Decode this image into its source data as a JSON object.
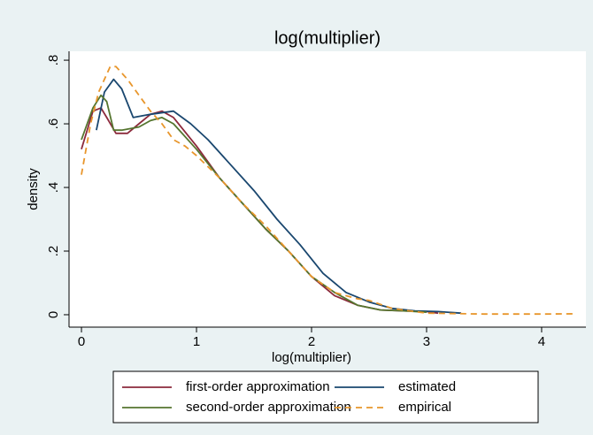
{
  "chart_data": {
    "type": "line",
    "title": "log(multiplier)",
    "x_label": "log(multiplier)",
    "y_label": "density",
    "xlim": [
      -0.108,
      4.385
    ],
    "ylim": [
      -0.039,
      0.828
    ],
    "xticks": [
      0,
      1,
      2,
      3,
      4
    ],
    "yticks": [
      0,
      {
        "value": 0.2,
        "label": ".2"
      },
      {
        "value": 0.4,
        "label": ".4"
      },
      {
        "value": 0.6,
        "label": ".6"
      },
      {
        "value": 0.8,
        "label": ".8"
      }
    ],
    "series": [
      {
        "name": "first-order approximation",
        "color": "#8c2a3c",
        "dashed": false,
        "x": [
          0,
          0.1,
          0.17,
          0.22,
          0.3,
          0.4,
          0.5,
          0.6,
          0.7,
          0.8,
          1.0,
          1.2,
          1.4,
          1.6,
          1.8,
          2.0,
          2.2,
          2.4,
          2.6,
          2.8,
          3.0,
          3.1
        ],
        "values": [
          0.52,
          0.64,
          0.65,
          0.62,
          0.57,
          0.57,
          0.6,
          0.63,
          0.64,
          0.62,
          0.53,
          0.43,
          0.35,
          0.27,
          0.2,
          0.12,
          0.06,
          0.03,
          0.015,
          0.012,
          0.01,
          0.005
        ]
      },
      {
        "name": "estimated",
        "color": "#1a476f",
        "dashed": false,
        "x": [
          0.13,
          0.2,
          0.28,
          0.35,
          0.45,
          0.6,
          0.8,
          0.95,
          1.1,
          1.3,
          1.5,
          1.7,
          1.9,
          2.1,
          2.3,
          2.5,
          2.7,
          2.9,
          3.1,
          3.3
        ],
        "values": [
          0.58,
          0.7,
          0.74,
          0.71,
          0.62,
          0.63,
          0.64,
          0.6,
          0.55,
          0.47,
          0.39,
          0.3,
          0.22,
          0.13,
          0.07,
          0.04,
          0.02,
          0.012,
          0.01,
          0.005
        ]
      },
      {
        "name": "second-order approximation",
        "color": "#55752f",
        "dashed": false,
        "x": [
          0,
          0.1,
          0.17,
          0.22,
          0.28,
          0.35,
          0.5,
          0.6,
          0.7,
          0.8,
          1.0,
          1.2,
          1.4,
          1.6,
          1.8,
          2.0,
          2.2,
          2.4,
          2.6,
          2.8,
          3.0
        ],
        "values": [
          0.55,
          0.65,
          0.69,
          0.67,
          0.58,
          0.58,
          0.59,
          0.61,
          0.62,
          0.6,
          0.52,
          0.43,
          0.35,
          0.27,
          0.2,
          0.12,
          0.07,
          0.03,
          0.015,
          0.012,
          0.008
        ]
      },
      {
        "name": "empirical",
        "color": "#e8962c",
        "dashed": true,
        "x": [
          0,
          0.08,
          0.15,
          0.25,
          0.3,
          0.4,
          0.5,
          0.6,
          0.7,
          0.8,
          0.9,
          1.0,
          1.2,
          1.4,
          1.6,
          1.8,
          2.0,
          2.2,
          2.4,
          2.5,
          2.7,
          3.0,
          3.5,
          4.0,
          4.3
        ],
        "values": [
          0.44,
          0.6,
          0.7,
          0.78,
          0.78,
          0.74,
          0.69,
          0.64,
          0.6,
          0.55,
          0.53,
          0.5,
          0.43,
          0.35,
          0.28,
          0.2,
          0.12,
          0.07,
          0.05,
          0.045,
          0.02,
          0.005,
          0.002,
          0.002,
          0.003
        ]
      }
    ]
  }
}
